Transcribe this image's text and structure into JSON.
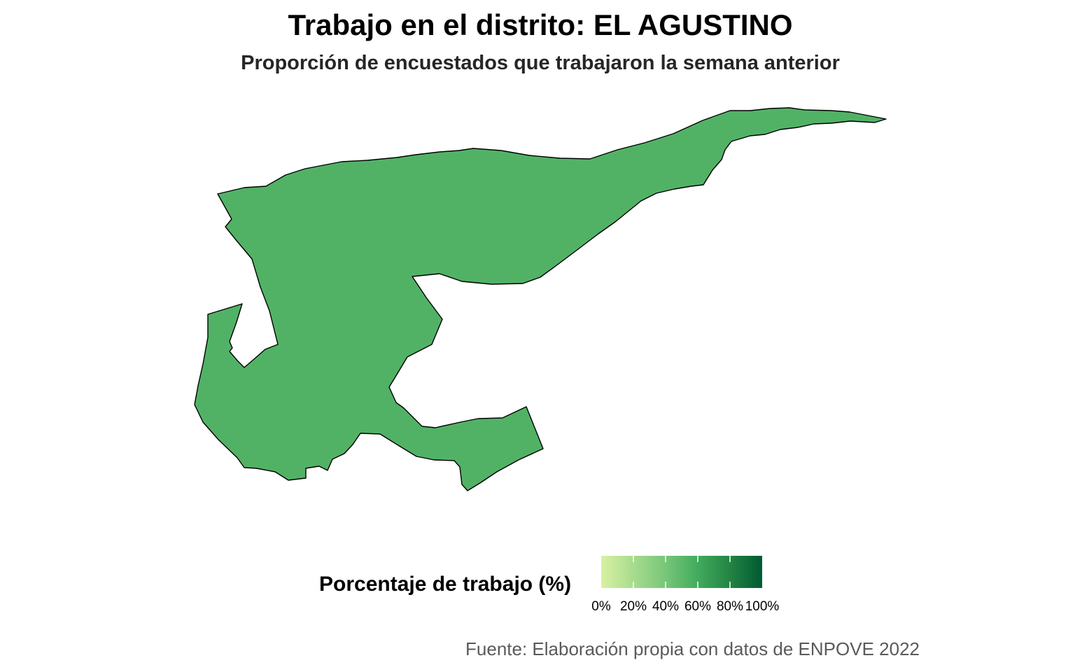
{
  "title": "Trabajo en el distrito: EL AGUSTINO",
  "subtitle": "Proporción de encuestados que trabajaron la semana anterior",
  "caption": "Fuente: Elaboración propia con datos de ENPOVE 2022",
  "map": {
    "region_name": "EL AGUSTINO",
    "fill_color": "#51b266",
    "border_color": "#000000"
  },
  "legend": {
    "title": "Porcentaje de trabajo (%)",
    "range": [
      0,
      100
    ],
    "ticks": [
      {
        "value": 0,
        "label": "0%"
      },
      {
        "value": 20,
        "label": "20%"
      },
      {
        "value": 40,
        "label": "40%"
      },
      {
        "value": 60,
        "label": "60%"
      },
      {
        "value": 80,
        "label": "80%"
      },
      {
        "value": 100,
        "label": "100%"
      }
    ],
    "colors": [
      "#d9f0a3",
      "#a8dc8e",
      "#78c679",
      "#41ab5d",
      "#238443",
      "#005a32"
    ]
  }
}
